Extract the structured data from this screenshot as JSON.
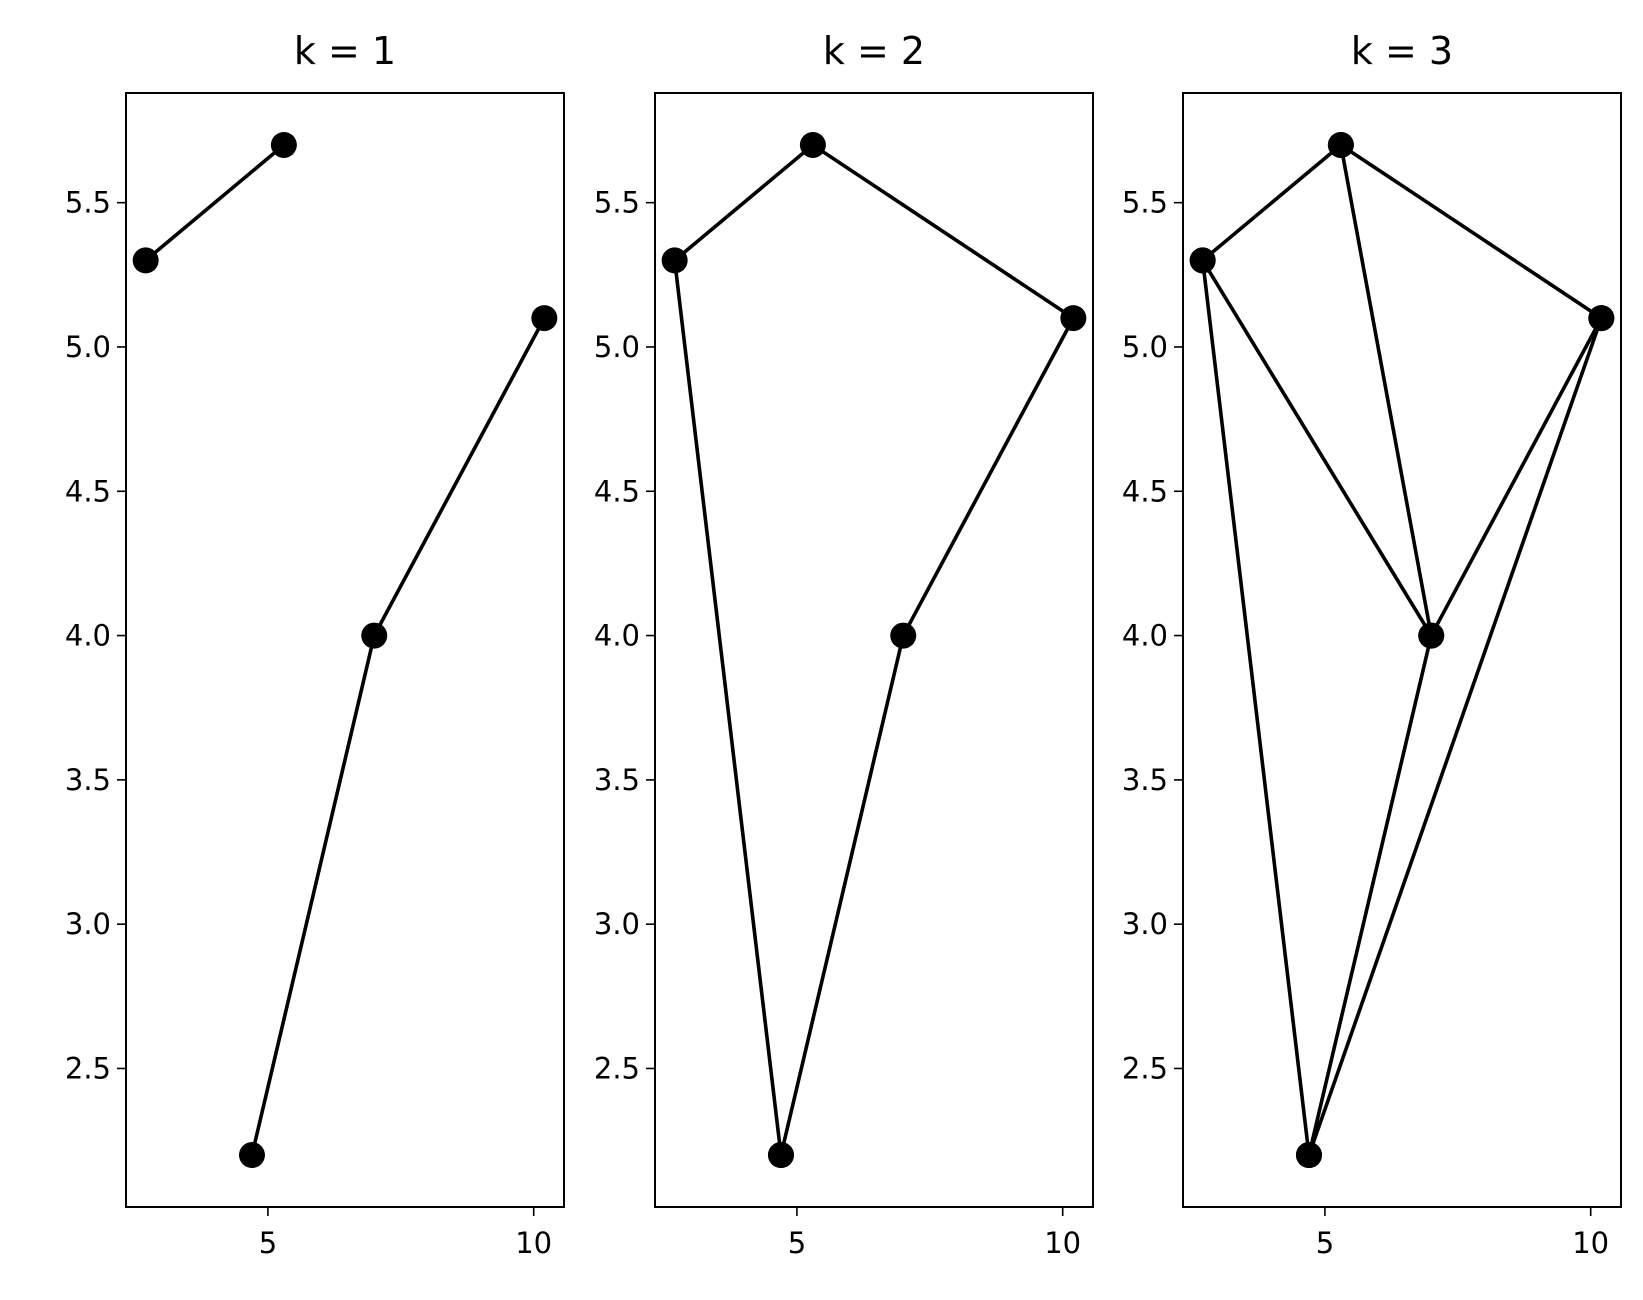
{
  "chart_data": [
    {
      "type": "line",
      "title": "k = 1",
      "color": "#000000",
      "xlim": [
        2.33,
        10.57
      ],
      "ylim": [
        2.02,
        5.88
      ],
      "xticks": [
        5,
        10
      ],
      "yticks": [
        2.5,
        {
          "value": 3,
          "label": "3.0"
        },
        3.5,
        {
          "value": 4,
          "label": "4.0"
        },
        4.5,
        {
          "value": 5,
          "label": "5.0"
        },
        5.5
      ],
      "series": [
        {
          "x": [
            2.7,
            5.3
          ],
          "values": [
            5.3,
            5.7
          ]
        },
        {
          "x": [
            4.7,
            7.0,
            10.2
          ],
          "values": [
            2.2,
            4.0,
            5.1
          ]
        }
      ]
    },
    {
      "type": "line",
      "title": "k = 2",
      "color": "#000000",
      "xlim": [
        2.33,
        10.57
      ],
      "ylim": [
        2.02,
        5.88
      ],
      "xticks": [
        5,
        10
      ],
      "yticks": [
        2.5,
        {
          "value": 3,
          "label": "3.0"
        },
        3.5,
        {
          "value": 4,
          "label": "4.0"
        },
        4.5,
        {
          "value": 5,
          "label": "5.0"
        },
        5.5
      ],
      "series": [
        {
          "x": [
            4.7,
            2.7,
            5.3,
            10.2,
            7.0,
            4.7
          ],
          "values": [
            2.2,
            5.3,
            5.7,
            5.1,
            4.0,
            2.2
          ]
        }
      ]
    },
    {
      "type": "line",
      "title": "k = 3",
      "color": "#000000",
      "xlim": [
        2.33,
        10.57
      ],
      "ylim": [
        2.02,
        5.88
      ],
      "xticks": [
        5,
        10
      ],
      "yticks": [
        2.5,
        {
          "value": 3,
          "label": "3.0"
        },
        3.5,
        {
          "value": 4,
          "label": "4.0"
        },
        4.5,
        {
          "value": 5,
          "label": "5.0"
        },
        5.5
      ],
      "series": [
        {
          "x": [
            4.7,
            2.7,
            5.3,
            10.2,
            7.0,
            4.7
          ],
          "values": [
            2.2,
            5.3,
            5.7,
            5.1,
            4.0,
            2.2
          ]
        },
        {
          "x": [
            2.7,
            7.0,
            5.3
          ],
          "values": [
            5.3,
            4.0,
            5.7
          ]
        },
        {
          "x": [
            4.7,
            10.2
          ],
          "values": [
            2.2,
            5.1
          ]
        }
      ]
    }
  ]
}
